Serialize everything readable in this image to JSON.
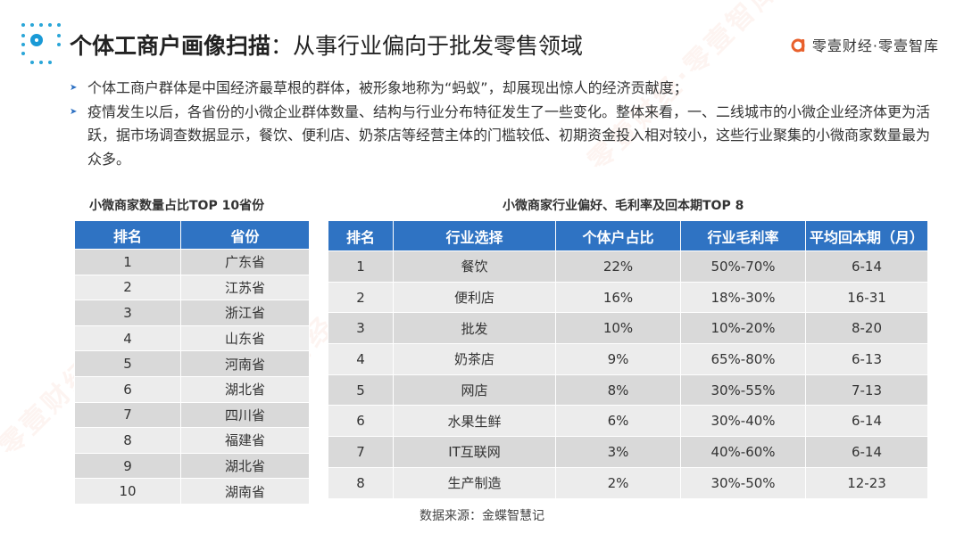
{
  "header": {
    "title_bold": "个体工商户画像扫描",
    "title_rest": "：从事行业偏向于批发零售领域",
    "brand_name": "零壹财经·零壹智库",
    "brand_color": "#e8602c"
  },
  "watermark_text": "零壹财经·零壹智库",
  "bullets": [
    "个体工商户群体是中国经济最草根的群体，被形象地称为“蚂蚁”，却展现出惊人的经济贡献度；",
    "疫情发生以后，各省份的小微企业群体数量、结构与行业分布特征发生了一些变化。整体来看，一、二线城市的小微企业经济体更为活跃，据市场调查数据显示，餐饮、便利店、奶茶店等经营主体的门槛较低、初期资金投入相对较小，这些行业聚集的小微商家数量最为众多。"
  ],
  "table1": {
    "caption": "小微商家数量占比TOP 10省份",
    "headers": [
      "排名",
      "省份"
    ],
    "rows": [
      [
        "1",
        "广东省"
      ],
      [
        "2",
        "江苏省"
      ],
      [
        "3",
        "浙江省"
      ],
      [
        "4",
        "山东省"
      ],
      [
        "5",
        "河南省"
      ],
      [
        "6",
        "湖北省"
      ],
      [
        "7",
        "四川省"
      ],
      [
        "8",
        "福建省"
      ],
      [
        "9",
        "湖北省"
      ],
      [
        "10",
        "湖南省"
      ]
    ]
  },
  "table2": {
    "caption": "小微商家行业偏好、毛利率及回本期TOP 8",
    "headers": [
      "排名",
      "行业选择",
      "个体户占比",
      "行业毛利率",
      "平均回本期（月）"
    ],
    "rows": [
      [
        "1",
        "餐饮",
        "22%",
        "50%-70%",
        "6-14"
      ],
      [
        "2",
        "便利店",
        "16%",
        "18%-30%",
        "16-31"
      ],
      [
        "3",
        "批发",
        "10%",
        "10%-20%",
        "8-20"
      ],
      [
        "4",
        "奶茶店",
        "9%",
        "65%-80%",
        "6-13"
      ],
      [
        "5",
        "网店",
        "8%",
        "30%-55%",
        "7-13"
      ],
      [
        "6",
        "水果生鲜",
        "6%",
        "30%-40%",
        "6-14"
      ],
      [
        "7",
        "IT互联网",
        "3%",
        "40%-60%",
        "6-14"
      ],
      [
        "8",
        "生产制造",
        "2%",
        "30%-50%",
        "12-23"
      ]
    ]
  },
  "source": "数据来源：金蝶智慧记"
}
